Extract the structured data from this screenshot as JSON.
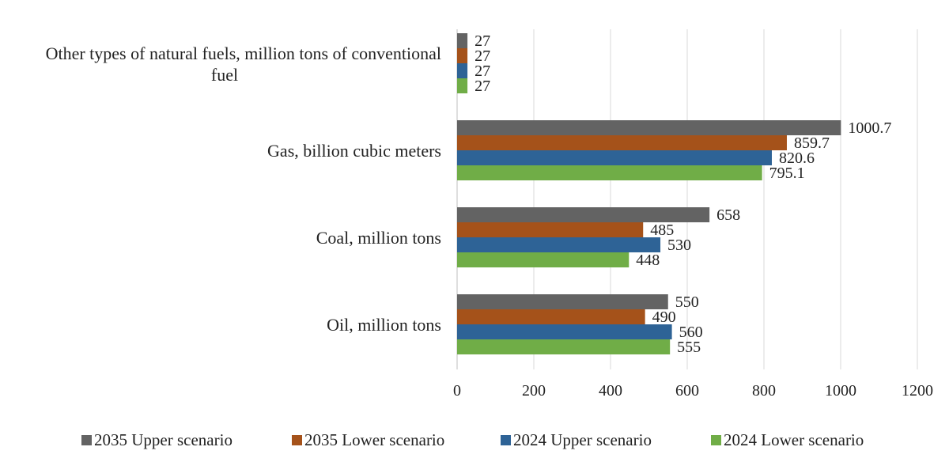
{
  "chart_data": {
    "type": "bar",
    "orientation": "horizontal",
    "title": "",
    "xlabel": "",
    "ylabel": "",
    "xlim": [
      0,
      1200
    ],
    "ticks": [
      0,
      200,
      400,
      600,
      800,
      1000,
      1200
    ],
    "grid": true,
    "legend_position": "bottom",
    "categories": [
      {
        "lines": [
          "Other types of natural fuels, million tons of conventional",
          "fuel"
        ]
      },
      {
        "lines": [
          "Gas, billion cubic meters"
        ]
      },
      {
        "lines": [
          "Coal, million tons"
        ]
      },
      {
        "lines": [
          "Oil, million tons"
        ]
      }
    ],
    "series": [
      {
        "name": "2035 Upper scenario",
        "color": "#636363",
        "values": [
          27,
          1000.7,
          658,
          550
        ],
        "labels": [
          "27",
          "1000.7",
          "658",
          "550"
        ]
      },
      {
        "name": "2035 Lower scenario",
        "color": "#A5521A",
        "values": [
          27,
          859.7,
          485,
          490
        ],
        "labels": [
          "27",
          "859.7",
          "485",
          "490"
        ]
      },
      {
        "name": "2024 Upper scenario",
        "color": "#2E6396",
        "values": [
          27,
          820.6,
          530,
          560
        ],
        "labels": [
          "27",
          "820.6",
          "530",
          "560"
        ]
      },
      {
        "name": "2024 Lower scenario",
        "color": "#70AD47",
        "values": [
          27,
          795.1,
          448,
          555
        ],
        "labels": [
          "27",
          "795.1",
          "448",
          "555"
        ]
      }
    ]
  }
}
